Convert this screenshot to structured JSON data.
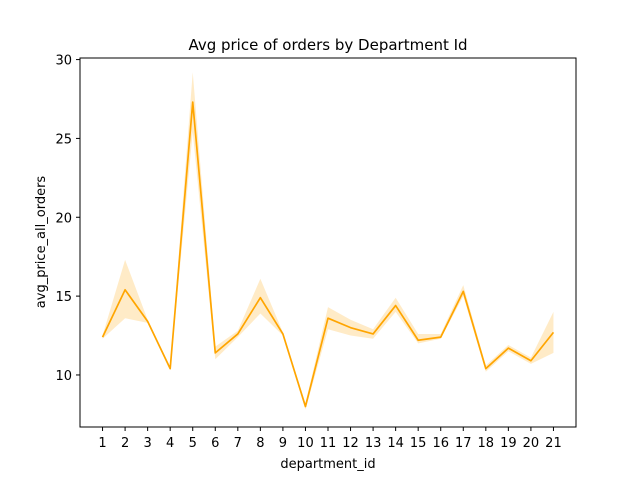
{
  "chart_data": {
    "type": "line",
    "title": "Avg price of orders by Department Id",
    "xlabel": "department_id",
    "ylabel": "avg_price_all_orders",
    "x": [
      1,
      2,
      3,
      4,
      5,
      6,
      7,
      8,
      9,
      10,
      11,
      12,
      13,
      14,
      15,
      16,
      17,
      18,
      19,
      20,
      21
    ],
    "series": [
      {
        "values": [
          12.4,
          15.4,
          13.4,
          10.4,
          27.3,
          11.4,
          12.6,
          14.9,
          12.6,
          8.0,
          13.6,
          13.0,
          12.6,
          14.4,
          12.2,
          12.4,
          15.3,
          10.4,
          11.7,
          10.9,
          12.7
        ],
        "ci_lower": [
          12.3,
          13.6,
          13.3,
          10.3,
          25.4,
          11.0,
          12.4,
          13.9,
          12.5,
          7.8,
          12.9,
          12.5,
          12.3,
          14.0,
          12.0,
          12.3,
          15.0,
          10.2,
          11.5,
          10.7,
          11.4
        ],
        "ci_upper": [
          12.5,
          17.3,
          13.5,
          10.5,
          29.2,
          11.8,
          12.8,
          16.1,
          12.7,
          8.2,
          14.3,
          13.5,
          12.9,
          14.9,
          12.6,
          12.6,
          15.7,
          10.6,
          11.9,
          11.1,
          14.0
        ],
        "color": "#ffa500",
        "band_color": "#ffa500"
      }
    ],
    "xlim": [
      0.0,
      22.0
    ],
    "ylim": [
      6.7,
      30.1
    ],
    "yticks": [
      10,
      15,
      20,
      25,
      30
    ],
    "grid": false,
    "legend": "none"
  }
}
